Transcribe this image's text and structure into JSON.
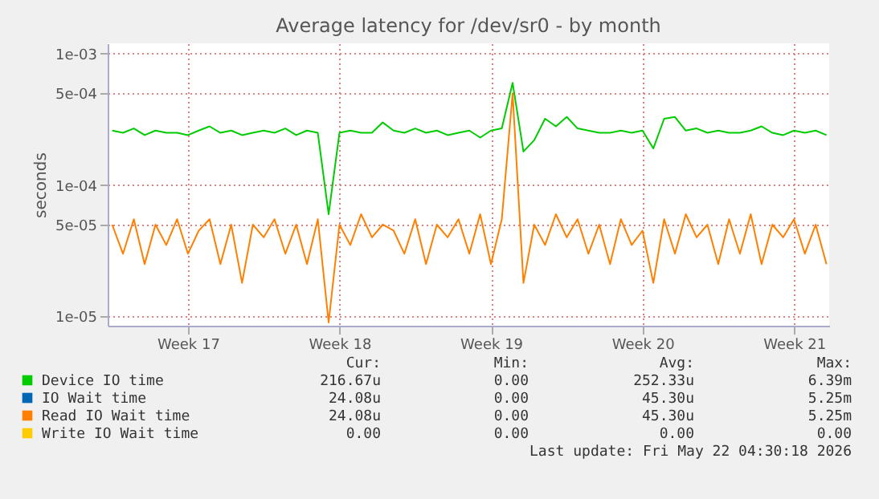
{
  "chart_data": {
    "type": "line",
    "title": "Average latency for /dev/sr0 - by month",
    "ylabel": "seconds",
    "log": "y",
    "grid": true,
    "legend": "bottom",
    "line_style": "solid",
    "marker": "none",
    "x": [
      "2026-04-16T12:00",
      "2026-04-17T00:00",
      "2026-04-17T12:00",
      "2026-04-18T00:00",
      "2026-04-18T12:00",
      "2026-04-19T00:00",
      "2026-04-19T12:00",
      "2026-04-20T00:00",
      "2026-04-20T12:00",
      "2026-04-21T00:00",
      "2026-04-21T12:00",
      "2026-04-22T00:00",
      "2026-04-22T12:00",
      "2026-04-23T00:00",
      "2026-04-23T12:00",
      "2026-04-24T00:00",
      "2026-04-24T12:00",
      "2026-04-25T00:00",
      "2026-04-25T12:00",
      "2026-04-26T00:00",
      "2026-04-26T12:00",
      "2026-04-27T00:00",
      "2026-04-27T12:00",
      "2026-04-28T00:00",
      "2026-04-28T12:00",
      "2026-04-29T00:00",
      "2026-04-29T12:00",
      "2026-04-30T00:00",
      "2026-04-30T12:00",
      "2026-05-01T00:00",
      "2026-05-01T12:00",
      "2026-05-02T00:00",
      "2026-05-02T12:00",
      "2026-05-03T00:00",
      "2026-05-03T12:00",
      "2026-05-04T00:00",
      "2026-05-04T12:00",
      "2026-05-05T00:00",
      "2026-05-05T12:00",
      "2026-05-06T00:00",
      "2026-05-06T12:00",
      "2026-05-07T00:00",
      "2026-05-07T12:00",
      "2026-05-08T00:00",
      "2026-05-08T12:00",
      "2026-05-09T00:00",
      "2026-05-09T12:00",
      "2026-05-10T00:00",
      "2026-05-10T12:00",
      "2026-05-11T00:00",
      "2026-05-11T12:00",
      "2026-05-12T00:00",
      "2026-05-12T12:00",
      "2026-05-13T00:00",
      "2026-05-13T12:00",
      "2026-05-14T00:00",
      "2026-05-14T12:00",
      "2026-05-15T00:00",
      "2026-05-15T12:00",
      "2026-05-16T00:00",
      "2026-05-16T12:00",
      "2026-05-17T00:00",
      "2026-05-17T12:00",
      "2026-05-18T00:00",
      "2026-05-18T12:00",
      "2026-05-19T00:00",
      "2026-05-19T12:00"
    ],
    "xlim": [
      "2026-04-16T07:00",
      "2026-05-19T15:00"
    ],
    "xticks": [
      {
        "value": "2026-04-20T00:00",
        "label": "Week 17"
      },
      {
        "value": "2026-04-27T00:00",
        "label": "Week 18"
      },
      {
        "value": "2026-05-04T00:00",
        "label": "Week 19"
      },
      {
        "value": "2026-05-11T00:00",
        "label": "Week 20"
      },
      {
        "value": "2026-05-18T00:00",
        "label": "Week 21"
      }
    ],
    "ylim": [
      8.5e-06,
      0.0012
    ],
    "yticks": [
      {
        "value": 1e-05,
        "label": "1e-05"
      },
      {
        "value": 5e-05,
        "label": "5e-05"
      },
      {
        "value": 0.0001,
        "label": "1e-04"
      },
      {
        "value": 0.0005,
        "label": "5e-04"
      },
      {
        "value": 0.001,
        "label": "1e-03"
      }
    ],
    "series": [
      {
        "name": "Device IO time",
        "color": "#00cc00",
        "values": [
          0.00026,
          0.00025,
          0.00027,
          0.00024,
          0.00026,
          0.00025,
          0.00025,
          0.00024,
          0.00026,
          0.00028,
          0.00025,
          0.00026,
          0.00024,
          0.00025,
          0.00026,
          0.00025,
          0.00027,
          0.00024,
          0.00026,
          0.00025,
          6e-05,
          0.00025,
          0.00026,
          0.00025,
          0.00025,
          0.0003,
          0.00026,
          0.00025,
          0.00027,
          0.00025,
          0.00026,
          0.00024,
          0.00025,
          0.00026,
          0.00023,
          0.00026,
          0.00027,
          0.0006,
          0.00018,
          0.00022,
          0.00032,
          0.00028,
          0.00033,
          0.00027,
          0.00026,
          0.00025,
          0.00025,
          0.00026,
          0.00025,
          0.00026,
          0.00019,
          0.00032,
          0.00033,
          0.00026,
          0.00027,
          0.00025,
          0.00026,
          0.00025,
          0.00025,
          0.00026,
          0.00028,
          0.00025,
          0.00024,
          0.00026,
          0.00025,
          0.00026,
          0.00024
        ]
      },
      {
        "name": "IO Wait time",
        "color": "#0066b3",
        "values": [
          null,
          null,
          null,
          null,
          null,
          null,
          null,
          null,
          null,
          null,
          null,
          null,
          null,
          null,
          null,
          null,
          null,
          null,
          null,
          null,
          null,
          null,
          null,
          null,
          null,
          null,
          null,
          null,
          null,
          null,
          null,
          null,
          null,
          null,
          null,
          null,
          null,
          null,
          null,
          null,
          null,
          null,
          null,
          null,
          null,
          null,
          null,
          null,
          null,
          null,
          null,
          null,
          null,
          null,
          null,
          null,
          null,
          null,
          null,
          null,
          null,
          null,
          null,
          null,
          null,
          null,
          null
        ]
      },
      {
        "name": "Read IO Wait time",
        "color": "#ff8000",
        "values": [
          5e-05,
          3e-05,
          5.5e-05,
          2.5e-05,
          5e-05,
          3.5e-05,
          5.5e-05,
          3e-05,
          4.5e-05,
          5.5e-05,
          2.5e-05,
          5e-05,
          1.8e-05,
          5e-05,
          4e-05,
          5.5e-05,
          3e-05,
          5e-05,
          2.5e-05,
          5.5e-05,
          9e-06,
          5e-05,
          3.5e-05,
          6e-05,
          4e-05,
          5e-05,
          4.5e-05,
          3e-05,
          5.5e-05,
          2.5e-05,
          5e-05,
          4e-05,
          5.5e-05,
          3e-05,
          6e-05,
          2.5e-05,
          5.5e-05,
          0.0005,
          1.8e-05,
          5e-05,
          3.5e-05,
          6e-05,
          4e-05,
          5.5e-05,
          3e-05,
          5e-05,
          2.5e-05,
          5.5e-05,
          3.5e-05,
          4.5e-05,
          1.8e-05,
          5.5e-05,
          3e-05,
          6e-05,
          4e-05,
          5e-05,
          2.5e-05,
          5.5e-05,
          3e-05,
          6e-05,
          2.5e-05,
          5e-05,
          4e-05,
          5.5e-05,
          3e-05,
          5e-05,
          2.5e-05
        ]
      },
      {
        "name": "Write IO Wait time",
        "color": "#ffcc00",
        "values": [
          null,
          null,
          null,
          null,
          null,
          null,
          null,
          null,
          null,
          null,
          null,
          null,
          null,
          null,
          null,
          null,
          null,
          null,
          null,
          null,
          null,
          null,
          null,
          null,
          null,
          null,
          null,
          null,
          null,
          null,
          null,
          null,
          null,
          null,
          null,
          null,
          null,
          null,
          null,
          null,
          null,
          null,
          null,
          null,
          null,
          null,
          null,
          null,
          null,
          null,
          null,
          null,
          null,
          null,
          null,
          null,
          null,
          null,
          null,
          null,
          null,
          null,
          null,
          null,
          null,
          null,
          null
        ]
      }
    ],
    "annotations": [
      "Cur:",
      "Min:",
      "Avg:",
      "Max:",
      "216.67u",
      "0.00",
      "252.33u",
      "6.39m",
      "24.08u",
      "0.00",
      "45.30u",
      "5.25m",
      "24.08u",
      "0.00",
      "45.30u",
      "5.25m",
      "0.00",
      "0.00",
      "0.00",
      "0.00",
      "Last update: Fri May 22 04:30:18 2026"
    ]
  }
}
